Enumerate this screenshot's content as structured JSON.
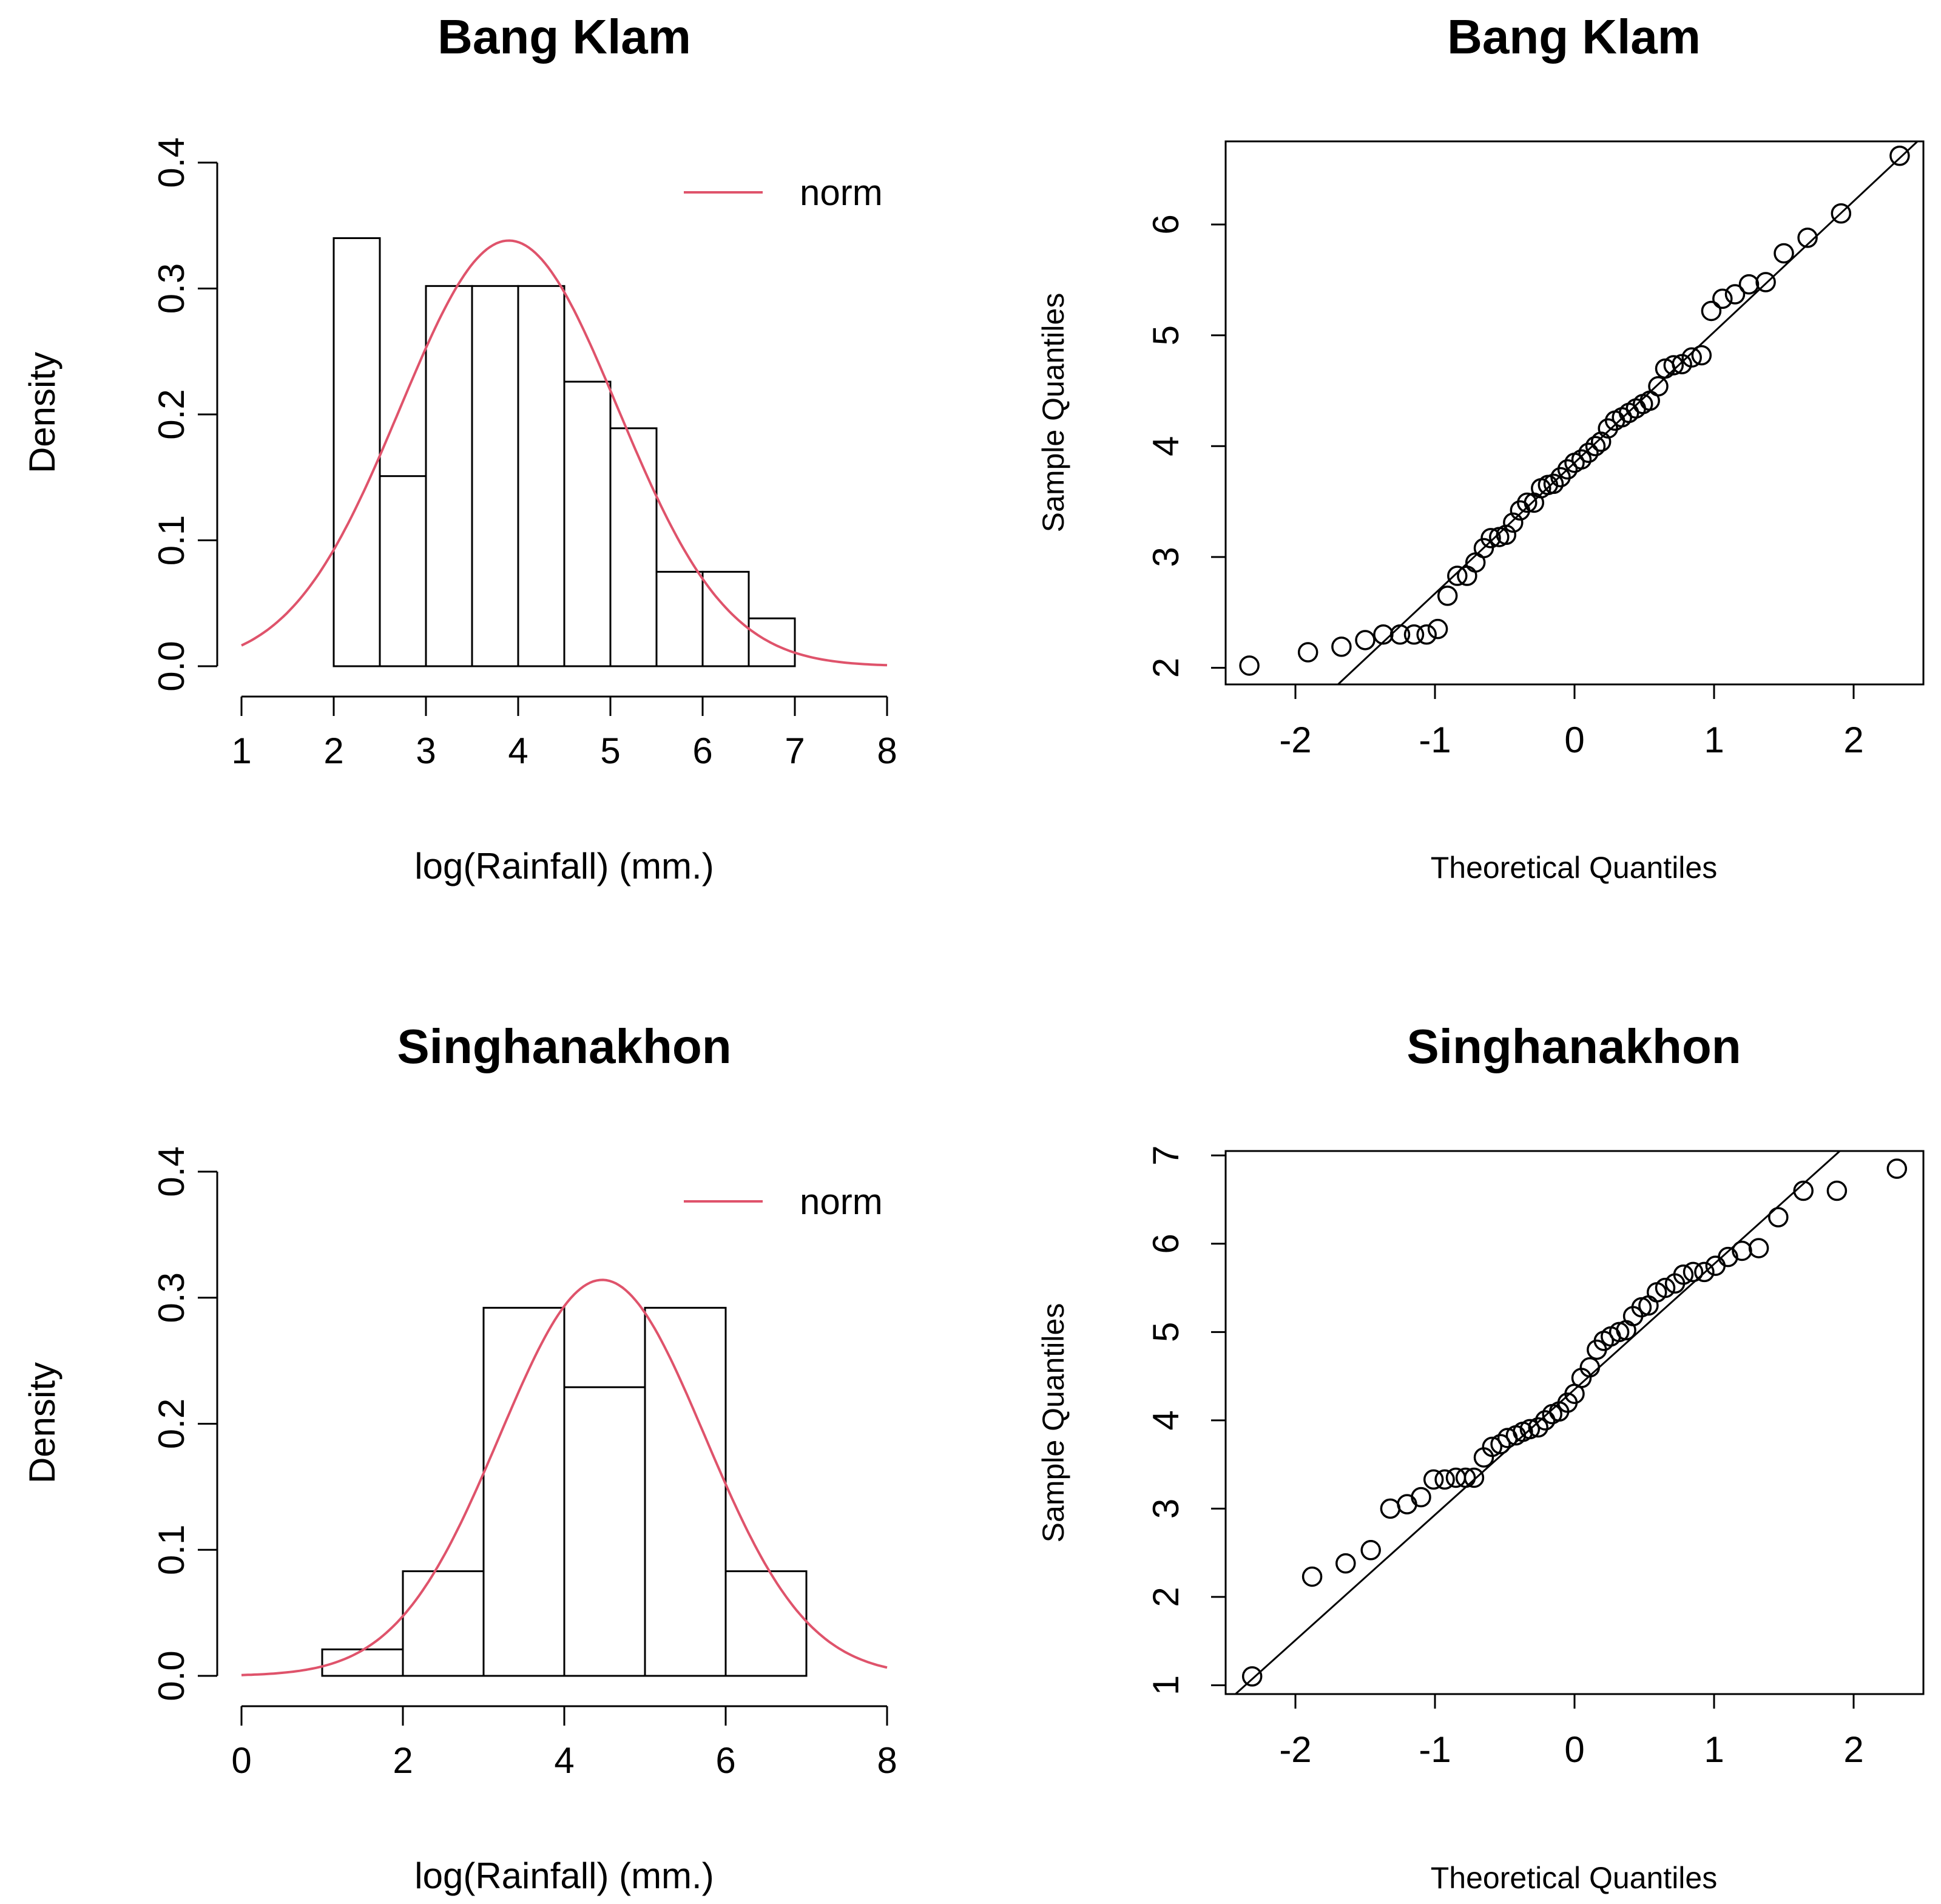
{
  "chart_data": [
    {
      "id": "hist1",
      "type": "bar",
      "subtype": "histogram",
      "title": "Bang Klam",
      "xlabel": "log(Rainfall) (mm.)",
      "ylabel": "Density",
      "xlim": [
        1,
        8
      ],
      "ylim": [
        0,
        0.4
      ],
      "xticks": [
        "1",
        "2",
        "3",
        "4",
        "5",
        "6",
        "7",
        "8"
      ],
      "yticks": [
        "0.0",
        "0.1",
        "0.2",
        "0.3",
        "0.4"
      ],
      "bins": [
        {
          "from": 2.0,
          "to": 2.5,
          "density": 0.34
        },
        {
          "from": 2.5,
          "to": 3.0,
          "density": 0.151
        },
        {
          "from": 3.0,
          "to": 3.5,
          "density": 0.302
        },
        {
          "from": 3.5,
          "to": 4.0,
          "density": 0.302
        },
        {
          "from": 4.0,
          "to": 4.5,
          "density": 0.302
        },
        {
          "from": 4.5,
          "to": 5.0,
          "density": 0.226
        },
        {
          "from": 5.0,
          "to": 5.5,
          "density": 0.189
        },
        {
          "from": 5.5,
          "to": 6.0,
          "density": 0.075
        },
        {
          "from": 6.0,
          "to": 6.5,
          "density": 0.075
        },
        {
          "from": 6.5,
          "to": 7.0,
          "density": 0.038
        }
      ],
      "fit": {
        "dist": "norm",
        "mean": 3.9,
        "sd": 1.18,
        "x_range": [
          1,
          8
        ]
      },
      "legend": {
        "label": "norm",
        "color": "#DF536B",
        "position": "top-right"
      }
    },
    {
      "id": "qq1",
      "type": "scatter",
      "subtype": "qq",
      "title": "Bang Klam",
      "xlabel": "Theoretical Quantiles",
      "ylabel": "Sample Quantiles",
      "xlim": [
        -2.5,
        2.5
      ],
      "ylim": [
        1.85,
        6.75
      ],
      "xticks": [
        "-2",
        "-1",
        "0",
        "1",
        "2"
      ],
      "yticks": [
        "2",
        "3",
        "4",
        "5",
        "6"
      ],
      "points": [
        [
          -2.33,
          2.02
        ],
        [
          -1.91,
          2.14
        ],
        [
          -1.67,
          2.19
        ],
        [
          -1.5,
          2.25
        ],
        [
          -1.37,
          2.3
        ],
        [
          -1.25,
          2.3
        ],
        [
          -1.15,
          2.3
        ],
        [
          -1.06,
          2.3
        ],
        [
          -0.98,
          2.35
        ],
        [
          -0.91,
          2.65
        ],
        [
          -0.84,
          2.83
        ],
        [
          -0.77,
          2.83
        ],
        [
          -0.71,
          2.95
        ],
        [
          -0.65,
          3.08
        ],
        [
          -0.6,
          3.17
        ],
        [
          -0.54,
          3.18
        ],
        [
          -0.49,
          3.2
        ],
        [
          -0.44,
          3.31
        ],
        [
          -0.39,
          3.42
        ],
        [
          -0.34,
          3.49
        ],
        [
          -0.29,
          3.49
        ],
        [
          -0.24,
          3.62
        ],
        [
          -0.19,
          3.65
        ],
        [
          -0.15,
          3.66
        ],
        [
          -0.1,
          3.72
        ],
        [
          -0.05,
          3.79
        ],
        [
          0.0,
          3.85
        ],
        [
          0.05,
          3.88
        ],
        [
          0.1,
          3.94
        ],
        [
          0.15,
          4.0
        ],
        [
          0.19,
          4.04
        ],
        [
          0.24,
          4.16
        ],
        [
          0.29,
          4.23
        ],
        [
          0.34,
          4.26
        ],
        [
          0.39,
          4.3
        ],
        [
          0.44,
          4.34
        ],
        [
          0.49,
          4.38
        ],
        [
          0.54,
          4.41
        ],
        [
          0.6,
          4.54
        ],
        [
          0.65,
          4.7
        ],
        [
          0.71,
          4.73
        ],
        [
          0.77,
          4.74
        ],
        [
          0.84,
          4.8
        ],
        [
          0.91,
          4.82
        ],
        [
          0.98,
          5.22
        ],
        [
          1.06,
          5.33
        ],
        [
          1.15,
          5.37
        ],
        [
          1.25,
          5.46
        ],
        [
          1.37,
          5.48
        ],
        [
          1.5,
          5.74
        ],
        [
          1.67,
          5.88
        ],
        [
          1.91,
          6.1
        ],
        [
          2.33,
          6.62
        ]
      ],
      "qqline": {
        "intercept": 3.85,
        "slope": 1.18
      }
    },
    {
      "id": "hist2",
      "type": "bar",
      "subtype": "histogram",
      "title": "Singhanakhon",
      "xlabel": "log(Rainfall) (mm.)",
      "ylabel": "Density",
      "xlim": [
        0,
        8
      ],
      "ylim": [
        0,
        0.4
      ],
      "xticks": [
        "0",
        "2",
        "4",
        "6",
        "8"
      ],
      "yticks": [
        "0.0",
        "0.1",
        "0.2",
        "0.3",
        "0.4"
      ],
      "bins": [
        {
          "from": 1,
          "to": 2,
          "density": 0.021
        },
        {
          "from": 2,
          "to": 3,
          "density": 0.083
        },
        {
          "from": 3,
          "to": 4,
          "density": 0.292
        },
        {
          "from": 4,
          "to": 5,
          "density": 0.229
        },
        {
          "from": 5,
          "to": 6,
          "density": 0.292
        },
        {
          "from": 6,
          "to": 7,
          "density": 0.083
        }
      ],
      "fit": {
        "dist": "norm",
        "mean": 4.47,
        "sd": 1.27,
        "x_range": [
          0,
          8
        ]
      },
      "legend": {
        "label": "norm",
        "color": "#DF536B",
        "position": "top-right"
      }
    },
    {
      "id": "qq2",
      "type": "scatter",
      "subtype": "qq",
      "title": "Singhanakhon",
      "xlabel": "Theoretical Quantiles",
      "ylabel": "Sample Quantiles",
      "xlim": [
        -2.5,
        2.5
      ],
      "ylim": [
        0.9,
        7.05
      ],
      "xticks": [
        "-2",
        "-1",
        "0",
        "1",
        "2"
      ],
      "yticks": [
        "1",
        "2",
        "3",
        "4",
        "5",
        "6",
        "7"
      ],
      "points": [
        [
          -2.31,
          1.1
        ],
        [
          -1.88,
          2.23
        ],
        [
          -1.64,
          2.38
        ],
        [
          -1.46,
          2.53
        ],
        [
          -1.32,
          3.0
        ],
        [
          -1.2,
          3.05
        ],
        [
          -1.1,
          3.13
        ],
        [
          -1.01,
          3.33
        ],
        [
          -0.93,
          3.33
        ],
        [
          -0.85,
          3.35
        ],
        [
          -0.78,
          3.35
        ],
        [
          -0.72,
          3.35
        ],
        [
          -0.65,
          3.58
        ],
        [
          -0.59,
          3.7
        ],
        [
          -0.53,
          3.73
        ],
        [
          -0.48,
          3.8
        ],
        [
          -0.42,
          3.83
        ],
        [
          -0.37,
          3.87
        ],
        [
          -0.32,
          3.9
        ],
        [
          -0.26,
          3.92
        ],
        [
          -0.21,
          4.0
        ],
        [
          -0.16,
          4.07
        ],
        [
          -0.11,
          4.1
        ],
        [
          -0.05,
          4.2
        ],
        [
          0.0,
          4.3
        ],
        [
          0.05,
          4.48
        ],
        [
          0.11,
          4.6
        ],
        [
          0.16,
          4.8
        ],
        [
          0.21,
          4.9
        ],
        [
          0.26,
          4.95
        ],
        [
          0.32,
          5.0
        ],
        [
          0.37,
          5.02
        ],
        [
          0.42,
          5.18
        ],
        [
          0.48,
          5.28
        ],
        [
          0.53,
          5.3
        ],
        [
          0.59,
          5.45
        ],
        [
          0.65,
          5.5
        ],
        [
          0.72,
          5.55
        ],
        [
          0.78,
          5.65
        ],
        [
          0.85,
          5.68
        ],
        [
          0.93,
          5.68
        ],
        [
          1.01,
          5.75
        ],
        [
          1.1,
          5.85
        ],
        [
          1.2,
          5.92
        ],
        [
          1.32,
          5.95
        ],
        [
          1.46,
          6.3
        ],
        [
          1.64,
          6.6
        ],
        [
          1.88,
          6.6
        ],
        [
          2.31,
          6.85
        ]
      ],
      "qqline": {
        "intercept": 4.35,
        "slope": 1.42
      }
    }
  ]
}
